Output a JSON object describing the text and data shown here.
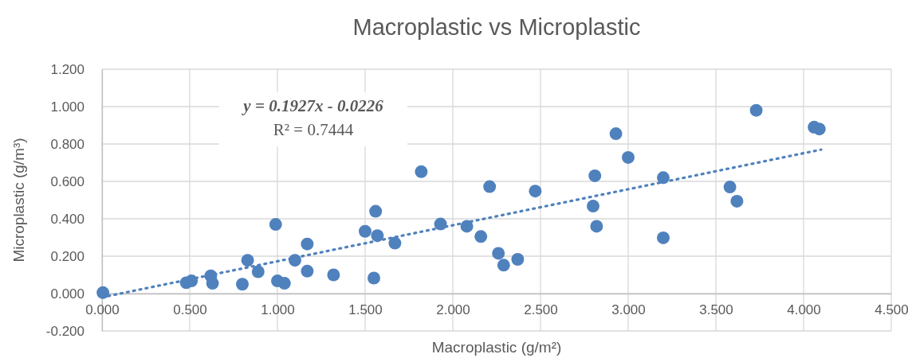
{
  "chart_data": {
    "type": "scatter",
    "title": "Macroplastic vs Microplastic",
    "xlabel": "Macroplastic (g/m²)",
    "ylabel": "Microplastic (g/m³)",
    "annotations": [
      "y = 0.1927x - 0.0226",
      "R² = 0.7444"
    ],
    "xlim": [
      0,
      4.5
    ],
    "ylim": [
      -0.2,
      1.2
    ],
    "xticks": [
      {
        "value": 0,
        "label": "0.000"
      },
      {
        "value": 0.5,
        "label": "0.500"
      },
      {
        "value": 1,
        "label": "1.000"
      },
      {
        "value": 1.5,
        "label": "1.500"
      },
      {
        "value": 2,
        "label": "2.000"
      },
      {
        "value": 2.5,
        "label": "2.500"
      },
      {
        "value": 3,
        "label": "3.000"
      },
      {
        "value": 3.5,
        "label": "3.500"
      },
      {
        "value": 4,
        "label": "4.000"
      },
      {
        "value": 4.5,
        "label": "4.500"
      }
    ],
    "yticks": [
      {
        "value": -0.2,
        "label": "-0.200"
      },
      {
        "value": 0,
        "label": "0.000"
      },
      {
        "value": 0.2,
        "label": "0.200"
      },
      {
        "value": 0.4,
        "label": "0.400"
      },
      {
        "value": 0.6,
        "label": "0.600"
      },
      {
        "value": 0.8,
        "label": "0.800"
      },
      {
        "value": 1,
        "label": "1.000"
      },
      {
        "value": 1.2,
        "label": "1.200"
      }
    ],
    "grid": true,
    "marker": "circle",
    "series": [
      {
        "color": "#4f81bd",
        "x": [
          0.005,
          0.48,
          0.51,
          0.62,
          0.63,
          0.8,
          0.83,
          0.89,
          0.99,
          1.0,
          1.04,
          1.1,
          1.17,
          1.17,
          1.32,
          1.5,
          1.55,
          1.56,
          1.57,
          1.67,
          1.82,
          1.93,
          2.08,
          2.16,
          2.21,
          2.26,
          2.29,
          2.37,
          2.47,
          2.81,
          2.8,
          2.82,
          2.93,
          3.0,
          3.2,
          3.2,
          3.58,
          3.62,
          3.73,
          4.06,
          4.09
        ],
        "values": [
          0.005,
          0.058,
          0.068,
          0.095,
          0.055,
          0.05,
          0.178,
          0.117,
          0.37,
          0.068,
          0.055,
          0.178,
          0.265,
          0.12,
          0.1,
          0.333,
          0.083,
          0.44,
          0.31,
          0.27,
          0.652,
          0.372,
          0.36,
          0.305,
          0.572,
          0.215,
          0.152,
          0.183,
          0.548,
          0.63,
          0.468,
          0.36,
          0.855,
          0.728,
          0.62,
          0.298,
          0.57,
          0.494,
          0.98,
          0.89,
          0.88
        ]
      },
      {
        "type": "line",
        "color": "#4f81bd",
        "line_style": "dotted",
        "marker": "none",
        "x": [
          0,
          4.1
        ],
        "values": [
          -0.02,
          0.77
        ]
      }
    ]
  }
}
